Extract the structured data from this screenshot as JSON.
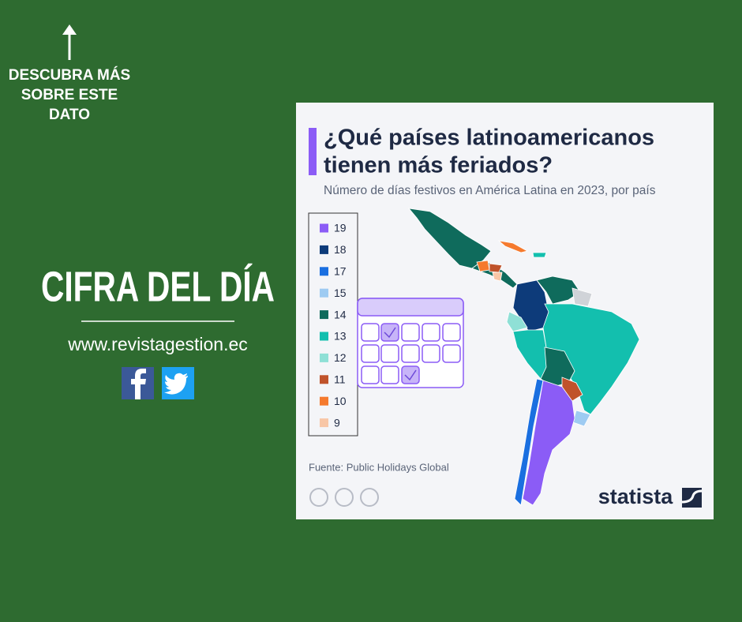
{
  "cta": {
    "lines": [
      "DESCUBRA MÁS",
      "SOBRE ESTE",
      "DATO"
    ]
  },
  "heading": "CIFRA DEL DÍA",
  "website": "www.revistagestion.ec",
  "card": {
    "title_lines": [
      "¿Qué países latinoamericanos",
      "tienen más feriados?"
    ],
    "subtitle": "Número de días festivos en América Latina en 2023, por país",
    "legend": [
      {
        "value": 19,
        "color": "#8b5cf6"
      },
      {
        "value": 18,
        "color": "#0d3b7a"
      },
      {
        "value": 17,
        "color": "#1a6fe0"
      },
      {
        "value": 15,
        "color": "#9ecbf2"
      },
      {
        "value": 14,
        "color": "#0f6b5c"
      },
      {
        "value": 13,
        "color": "#13bfae"
      },
      {
        "value": 12,
        "color": "#8fe0d6"
      },
      {
        "value": 11,
        "color": "#c0532b"
      },
      {
        "value": 10,
        "color": "#f57a2e"
      },
      {
        "value": 9,
        "color": "#f8c6a6"
      }
    ],
    "source": "Fuente: Public Holidays Global",
    "brand": "statista"
  }
}
